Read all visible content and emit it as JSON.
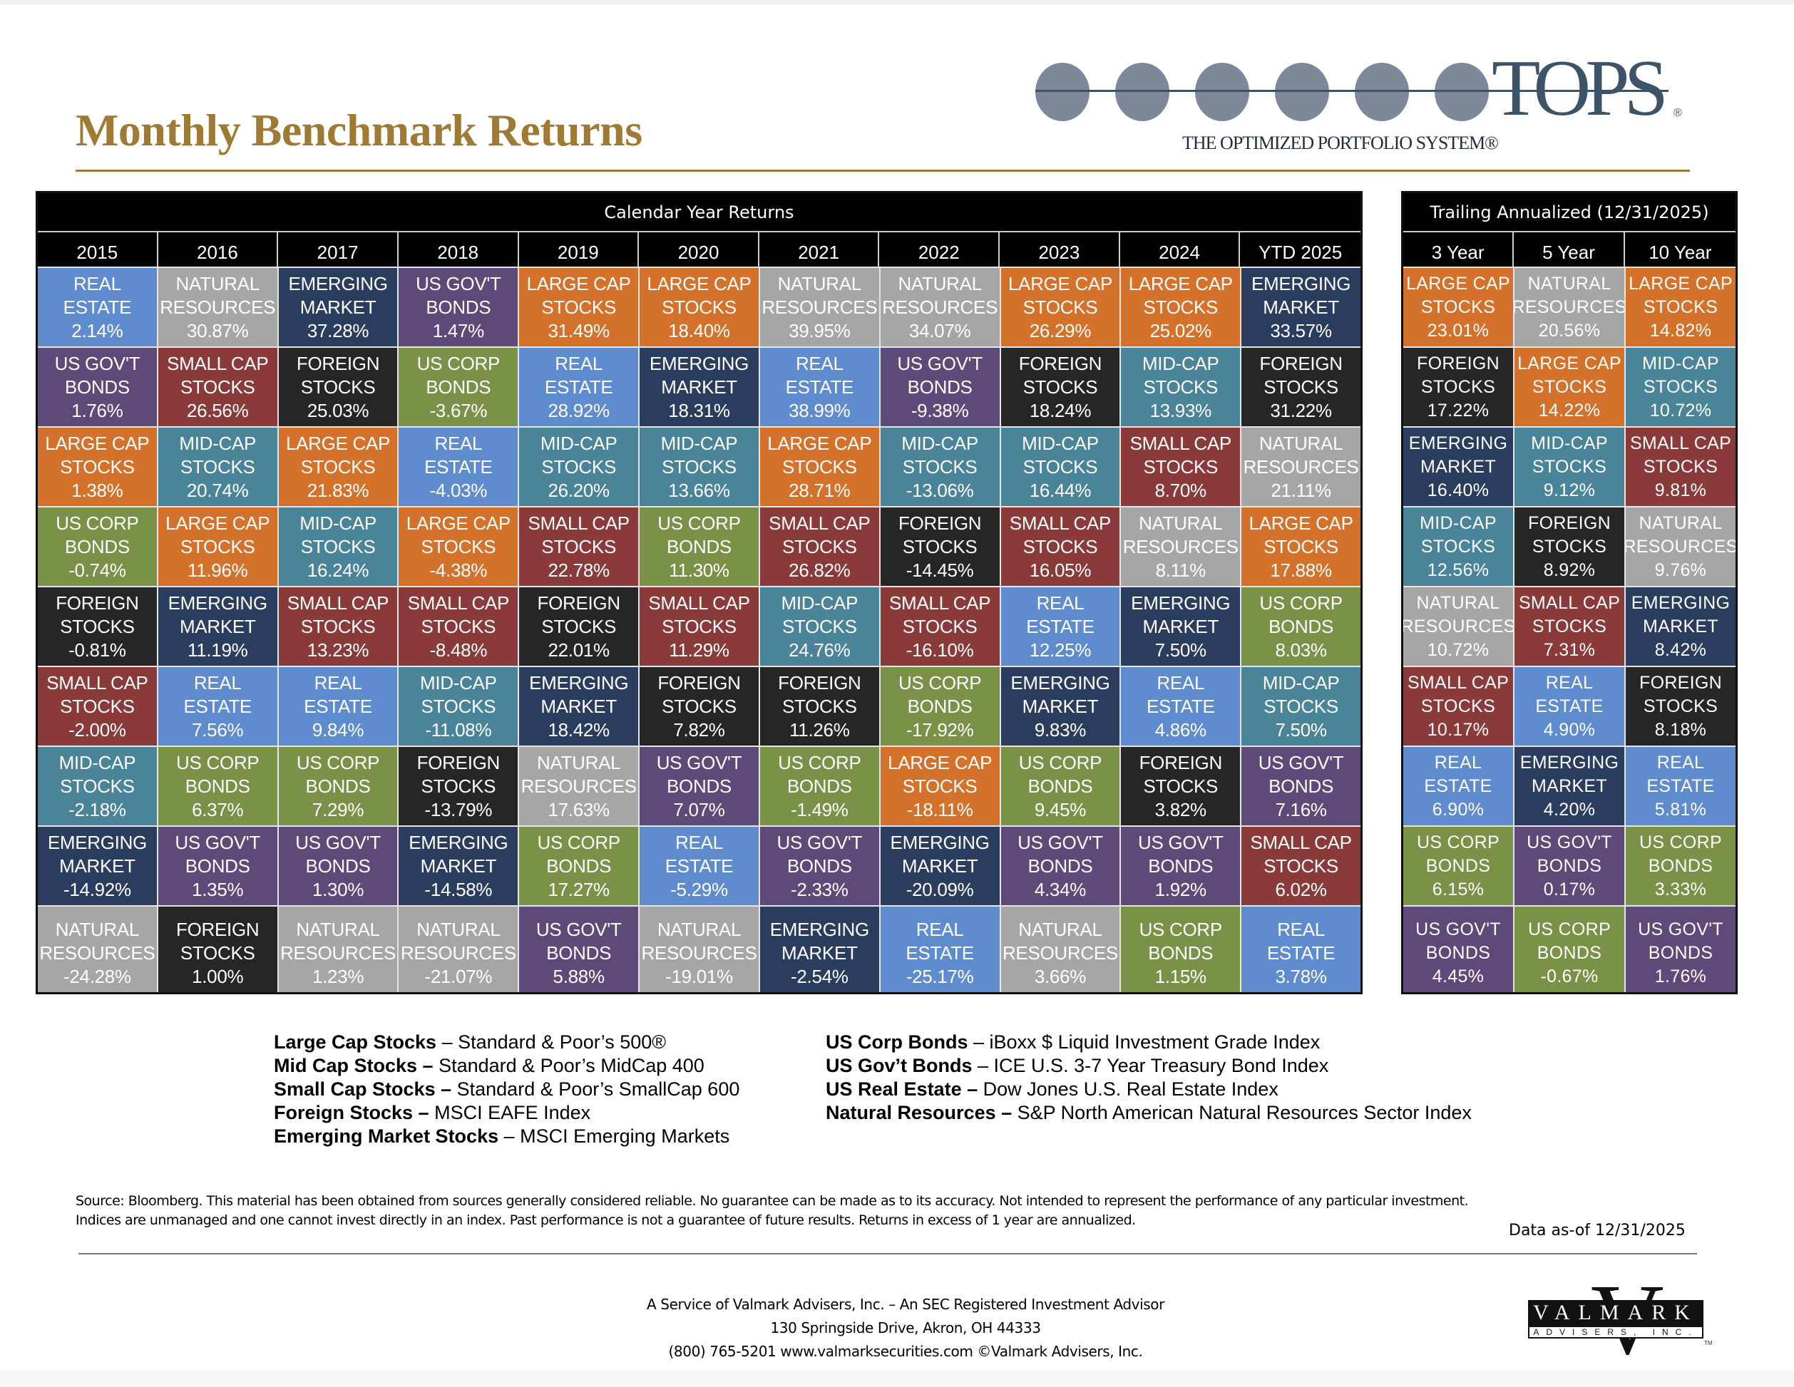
{
  "header": {
    "title": "Monthly Benchmark Returns",
    "logo": {
      "word": "TOPS",
      "registered": "®",
      "tagline": "THE OPTIMIZED PORTFOLIO SYSTEM®"
    }
  },
  "colors": {
    "title_gold": "#9e7a34",
    "LARGE_CAP": "#d4722c",
    "MID_CAP": "#4a8498",
    "SMALL_CAP": "#8b3a3a",
    "FOREIGN": "#262626",
    "EMERGING": "#2b3d5e",
    "US_CORP": "#7a9148",
    "US_GOVT": "#5d4a78",
    "REAL_ESTATE": "#5f8bcf",
    "NATURAL": "#a6a6a6"
  },
  "calendar": {
    "caption": "Calendar Year Returns",
    "columns": [
      "2015",
      "2016",
      "2017",
      "2018",
      "2019",
      "2020",
      "2021",
      "2022",
      "2023",
      "2024",
      "YTD 2025"
    ],
    "rows": [
      [
        [
          "REAL",
          "ESTATE",
          "2.14%",
          "REAL_ESTATE"
        ],
        [
          "NATURAL",
          "RESOURCES",
          "30.87%",
          "NATURAL"
        ],
        [
          "EMERGING",
          "MARKET",
          "37.28%",
          "EMERGING"
        ],
        [
          "US GOV'T",
          "BONDS",
          "1.47%",
          "US_GOVT"
        ],
        [
          "LARGE CAP",
          "STOCKS",
          "31.49%",
          "LARGE_CAP"
        ],
        [
          "LARGE CAP",
          "STOCKS",
          "18.40%",
          "LARGE_CAP"
        ],
        [
          "NATURAL",
          "RESOURCES",
          "39.95%",
          "NATURAL"
        ],
        [
          "NATURAL",
          "RESOURCES",
          "34.07%",
          "NATURAL"
        ],
        [
          "LARGE CAP",
          "STOCKS",
          "26.29%",
          "LARGE_CAP"
        ],
        [
          "LARGE CAP",
          "STOCKS",
          "25.02%",
          "LARGE_CAP"
        ],
        [
          "EMERGING",
          "MARKET",
          "33.57%",
          "EMERGING"
        ]
      ],
      [
        [
          "US GOV'T",
          "BONDS",
          "1.76%",
          "US_GOVT"
        ],
        [
          "SMALL CAP",
          "STOCKS",
          "26.56%",
          "SMALL_CAP"
        ],
        [
          "FOREIGN",
          "STOCKS",
          "25.03%",
          "FOREIGN"
        ],
        [
          "US CORP",
          "BONDS",
          "-3.67%",
          "US_CORP"
        ],
        [
          "REAL",
          "ESTATE",
          "28.92%",
          "REAL_ESTATE"
        ],
        [
          "EMERGING",
          "MARKET",
          "18.31%",
          "EMERGING"
        ],
        [
          "REAL",
          "ESTATE",
          "38.99%",
          "REAL_ESTATE"
        ],
        [
          "US GOV'T",
          "BONDS",
          "-9.38%",
          "US_GOVT"
        ],
        [
          "FOREIGN",
          "STOCKS",
          "18.24%",
          "FOREIGN"
        ],
        [
          "MID-CAP",
          "STOCKS",
          "13.93%",
          "MID_CAP"
        ],
        [
          "FOREIGN",
          "STOCKS",
          "31.22%",
          "FOREIGN"
        ]
      ],
      [
        [
          "LARGE CAP",
          "STOCKS",
          "1.38%",
          "LARGE_CAP"
        ],
        [
          "MID-CAP",
          "STOCKS",
          "20.74%",
          "MID_CAP"
        ],
        [
          "LARGE CAP",
          "STOCKS",
          "21.83%",
          "LARGE_CAP"
        ],
        [
          "REAL",
          "ESTATE",
          "-4.03%",
          "REAL_ESTATE"
        ],
        [
          "MID-CAP",
          "STOCKS",
          "26.20%",
          "MID_CAP"
        ],
        [
          "MID-CAP",
          "STOCKS",
          "13.66%",
          "MID_CAP"
        ],
        [
          "LARGE CAP",
          "STOCKS",
          "28.71%",
          "LARGE_CAP"
        ],
        [
          "MID-CAP",
          "STOCKS",
          "-13.06%",
          "MID_CAP"
        ],
        [
          "MID-CAP",
          "STOCKS",
          "16.44%",
          "MID_CAP"
        ],
        [
          "SMALL CAP",
          "STOCKS",
          "8.70%",
          "SMALL_CAP"
        ],
        [
          "NATURAL",
          "RESOURCES",
          "21.11%",
          "NATURAL"
        ]
      ],
      [
        [
          "US CORP",
          "BONDS",
          "-0.74%",
          "US_CORP"
        ],
        [
          "LARGE CAP",
          "STOCKS",
          "11.96%",
          "LARGE_CAP"
        ],
        [
          "MID-CAP",
          "STOCKS",
          "16.24%",
          "MID_CAP"
        ],
        [
          "LARGE CAP",
          "STOCKS",
          "-4.38%",
          "LARGE_CAP"
        ],
        [
          "SMALL CAP",
          "STOCKS",
          "22.78%",
          "SMALL_CAP"
        ],
        [
          "US CORP",
          "BONDS",
          "11.30%",
          "US_CORP"
        ],
        [
          "SMALL CAP",
          "STOCKS",
          "26.82%",
          "SMALL_CAP"
        ],
        [
          "FOREIGN",
          "STOCKS",
          "-14.45%",
          "FOREIGN"
        ],
        [
          "SMALL CAP",
          "STOCKS",
          "16.05%",
          "SMALL_CAP"
        ],
        [
          "NATURAL",
          "RESOURCES",
          "8.11%",
          "NATURAL"
        ],
        [
          "LARGE CAP",
          "STOCKS",
          "17.88%",
          "LARGE_CAP"
        ]
      ],
      [
        [
          "FOREIGN",
          "STOCKS",
          "-0.81%",
          "FOREIGN"
        ],
        [
          "EMERGING",
          "MARKET",
          "11.19%",
          "EMERGING"
        ],
        [
          "SMALL CAP",
          "STOCKS",
          "13.23%",
          "SMALL_CAP"
        ],
        [
          "SMALL CAP",
          "STOCKS",
          "-8.48%",
          "SMALL_CAP"
        ],
        [
          "FOREIGN",
          "STOCKS",
          "22.01%",
          "FOREIGN"
        ],
        [
          "SMALL CAP",
          "STOCKS",
          "11.29%",
          "SMALL_CAP"
        ],
        [
          "MID-CAP",
          "STOCKS",
          "24.76%",
          "MID_CAP"
        ],
        [
          "SMALL CAP",
          "STOCKS",
          "-16.10%",
          "SMALL_CAP"
        ],
        [
          "REAL",
          "ESTATE",
          "12.25%",
          "REAL_ESTATE"
        ],
        [
          "EMERGING",
          "MARKET",
          "7.50%",
          "EMERGING"
        ],
        [
          "US CORP",
          "BONDS",
          "8.03%",
          "US_CORP"
        ]
      ],
      [
        [
          "SMALL CAP",
          "STOCKS",
          "-2.00%",
          "SMALL_CAP"
        ],
        [
          "REAL",
          "ESTATE",
          "7.56%",
          "REAL_ESTATE"
        ],
        [
          "REAL",
          "ESTATE",
          "9.84%",
          "REAL_ESTATE"
        ],
        [
          "MID-CAP",
          "STOCKS",
          "-11.08%",
          "MID_CAP"
        ],
        [
          "EMERGING",
          "MARKET",
          "18.42%",
          "EMERGING"
        ],
        [
          "FOREIGN",
          "STOCKS",
          "7.82%",
          "FOREIGN"
        ],
        [
          "FOREIGN",
          "STOCKS",
          "11.26%",
          "FOREIGN"
        ],
        [
          "US CORP",
          "BONDS",
          "-17.92%",
          "US_CORP"
        ],
        [
          "EMERGING",
          "MARKET",
          "9.83%",
          "EMERGING"
        ],
        [
          "REAL",
          "ESTATE",
          "4.86%",
          "REAL_ESTATE"
        ],
        [
          "MID-CAP",
          "STOCKS",
          "7.50%",
          "MID_CAP"
        ]
      ],
      [
        [
          "MID-CAP",
          "STOCKS",
          "-2.18%",
          "MID_CAP"
        ],
        [
          "US CORP",
          "BONDS",
          "6.37%",
          "US_CORP"
        ],
        [
          "US CORP",
          "BONDS",
          "7.29%",
          "US_CORP"
        ],
        [
          "FOREIGN",
          "STOCKS",
          "-13.79%",
          "FOREIGN"
        ],
        [
          "NATURAL",
          "RESOURCES",
          "17.63%",
          "NATURAL"
        ],
        [
          "US GOV'T",
          "BONDS",
          "7.07%",
          "US_GOVT"
        ],
        [
          "US CORP",
          "BONDS",
          "-1.49%",
          "US_CORP"
        ],
        [
          "LARGE CAP",
          "STOCKS",
          "-18.11%",
          "LARGE_CAP"
        ],
        [
          "US CORP",
          "BONDS",
          "9.45%",
          "US_CORP"
        ],
        [
          "FOREIGN",
          "STOCKS",
          "3.82%",
          "FOREIGN"
        ],
        [
          "US GOV'T",
          "BONDS",
          "7.16%",
          "US_GOVT"
        ]
      ],
      [
        [
          "EMERGING",
          "MARKET",
          "-14.92%",
          "EMERGING"
        ],
        [
          "US GOV'T",
          "BONDS",
          "1.35%",
          "US_GOVT"
        ],
        [
          "US GOV'T",
          "BONDS",
          "1.30%",
          "US_GOVT"
        ],
        [
          "EMERGING",
          "MARKET",
          "-14.58%",
          "EMERGING"
        ],
        [
          "US CORP",
          "BONDS",
          "17.27%",
          "US_CORP"
        ],
        [
          "REAL",
          "ESTATE",
          "-5.29%",
          "REAL_ESTATE"
        ],
        [
          "US GOV'T",
          "BONDS",
          "-2.33%",
          "US_GOVT"
        ],
        [
          "EMERGING",
          "MARKET",
          "-20.09%",
          "EMERGING"
        ],
        [
          "US GOV'T",
          "BONDS",
          "4.34%",
          "US_GOVT"
        ],
        [
          "US GOV'T",
          "BONDS",
          "1.92%",
          "US_GOVT"
        ],
        [
          "SMALL CAP",
          "STOCKS",
          "6.02%",
          "SMALL_CAP"
        ]
      ],
      [
        [
          "NATURAL",
          "RESOURCES",
          "-24.28%",
          "NATURAL"
        ],
        [
          "FOREIGN",
          "STOCKS",
          "1.00%",
          "FOREIGN"
        ],
        [
          "NATURAL",
          "RESOURCES",
          "1.23%",
          "NATURAL"
        ],
        [
          "NATURAL",
          "RESOURCES",
          "-21.07%",
          "NATURAL"
        ],
        [
          "US GOV'T",
          "BONDS",
          "5.88%",
          "US_GOVT"
        ],
        [
          "NATURAL",
          "RESOURCES",
          "-19.01%",
          "NATURAL"
        ],
        [
          "EMERGING",
          "MARKET",
          "-2.54%",
          "EMERGING"
        ],
        [
          "REAL",
          "ESTATE",
          "-25.17%",
          "REAL_ESTATE"
        ],
        [
          "NATURAL",
          "RESOURCES",
          "3.66%",
          "NATURAL"
        ],
        [
          "US CORP",
          "BONDS",
          "1.15%",
          "US_CORP"
        ],
        [
          "REAL",
          "ESTATE",
          "3.78%",
          "REAL_ESTATE"
        ]
      ]
    ]
  },
  "trailing": {
    "caption": "Trailing Annualized (12/31/2025)",
    "columns": [
      "3 Year",
      "5 Year",
      "10 Year"
    ],
    "rows": [
      [
        [
          "LARGE CAP",
          "STOCKS",
          "23.01%",
          "LARGE_CAP"
        ],
        [
          "NATURAL",
          "RESOURCES",
          "20.56%",
          "NATURAL"
        ],
        [
          "LARGE CAP",
          "STOCKS",
          "14.82%",
          "LARGE_CAP"
        ]
      ],
      [
        [
          "FOREIGN",
          "STOCKS",
          "17.22%",
          "FOREIGN"
        ],
        [
          "LARGE CAP",
          "STOCKS",
          "14.22%",
          "LARGE_CAP"
        ],
        [
          "MID-CAP",
          "STOCKS",
          "10.72%",
          "MID_CAP"
        ]
      ],
      [
        [
          "EMERGING",
          "MARKET",
          "16.40%",
          "EMERGING"
        ],
        [
          "MID-CAP",
          "STOCKS",
          "9.12%",
          "MID_CAP"
        ],
        [
          "SMALL CAP",
          "STOCKS",
          "9.81%",
          "SMALL_CAP"
        ]
      ],
      [
        [
          "MID-CAP",
          "STOCKS",
          "12.56%",
          "MID_CAP"
        ],
        [
          "FOREIGN",
          "STOCKS",
          "8.92%",
          "FOREIGN"
        ],
        [
          "NATURAL",
          "RESOURCES",
          "9.76%",
          "NATURAL"
        ]
      ],
      [
        [
          "NATURAL",
          "RESOURCES",
          "10.72%",
          "NATURAL"
        ],
        [
          "SMALL CAP",
          "STOCKS",
          "7.31%",
          "SMALL_CAP"
        ],
        [
          "EMERGING",
          "MARKET",
          "8.42%",
          "EMERGING"
        ]
      ],
      [
        [
          "SMALL CAP",
          "STOCKS",
          "10.17%",
          "SMALL_CAP"
        ],
        [
          "REAL",
          "ESTATE",
          "4.90%",
          "REAL_ESTATE"
        ],
        [
          "FOREIGN",
          "STOCKS",
          "8.18%",
          "FOREIGN"
        ]
      ],
      [
        [
          "REAL",
          "ESTATE",
          "6.90%",
          "REAL_ESTATE"
        ],
        [
          "EMERGING",
          "MARKET",
          "4.20%",
          "EMERGING"
        ],
        [
          "REAL",
          "ESTATE",
          "5.81%",
          "REAL_ESTATE"
        ]
      ],
      [
        [
          "US CORP",
          "BONDS",
          "6.15%",
          "US_CORP"
        ],
        [
          "US GOV'T",
          "BONDS",
          "0.17%",
          "US_GOVT"
        ],
        [
          "US CORP",
          "BONDS",
          "3.33%",
          "US_CORP"
        ]
      ],
      [
        [
          "US GOV'T",
          "BONDS",
          "4.45%",
          "US_GOVT"
        ],
        [
          "US CORP",
          "BONDS",
          "-0.67%",
          "US_CORP"
        ],
        [
          "US GOV'T",
          "BONDS",
          "1.76%",
          "US_GOVT"
        ]
      ]
    ]
  },
  "legend": {
    "left": [
      {
        "term": "Large Cap Stocks",
        "sep": " – ",
        "desc": "Standard & Poor’s 500®"
      },
      {
        "term": "Mid Cap Stocks –",
        "sep": " ",
        "desc": "Standard & Poor’s MidCap 400"
      },
      {
        "term": "Small Cap Stocks –",
        "sep": " ",
        "desc": "Standard & Poor’s SmallCap 600"
      },
      {
        "term": "Foreign Stocks –",
        "sep": " ",
        "desc": "MSCI EAFE Index"
      },
      {
        "term": "Emerging Market Stocks",
        "sep": " – ",
        "desc": "MSCI Emerging Markets"
      }
    ],
    "right": [
      {
        "term": "US Corp Bonds",
        "sep": " – ",
        "desc": "iBoxx $ Liquid Investment Grade Index"
      },
      {
        "term": "US Gov’t Bonds",
        "sep": " – ",
        "desc": "ICE U.S. 3-7 Year Treasury Bond Index"
      },
      {
        "term": "US Real Estate –",
        "sep": " ",
        "desc": "Dow Jones U.S. Real Estate Index"
      },
      {
        "term": "Natural Resources –",
        "sep": " ",
        "desc": "S&P North American Natural Resources Sector Index"
      }
    ]
  },
  "disclaimer": {
    "line1": "Source: Bloomberg. This material has been obtained from sources generally considered reliable. No guarantee can be made as to its accuracy. Not intended to represent the performance of any particular investment.",
    "line2": "Indices are unmanaged and one cannot invest directly in an index. Past performance is not a guarantee of future results.  Returns in excess of 1 year are annualized.",
    "as_of": "Data as-of 12/31/2025"
  },
  "footer": {
    "line1": "A Service of Valmark Advisers, Inc. – An SEC Registered Investment Advisor",
    "line2": "130 Springside Drive, Akron, OH  44333",
    "line3": "(800) 765-5201  www.valmarksecurities.com  ©Valmark Advisers, Inc.",
    "logo": {
      "v": "V",
      "name": "VALMARK",
      "sub": "ADVISERS, INC.",
      "tm": "TM"
    }
  }
}
